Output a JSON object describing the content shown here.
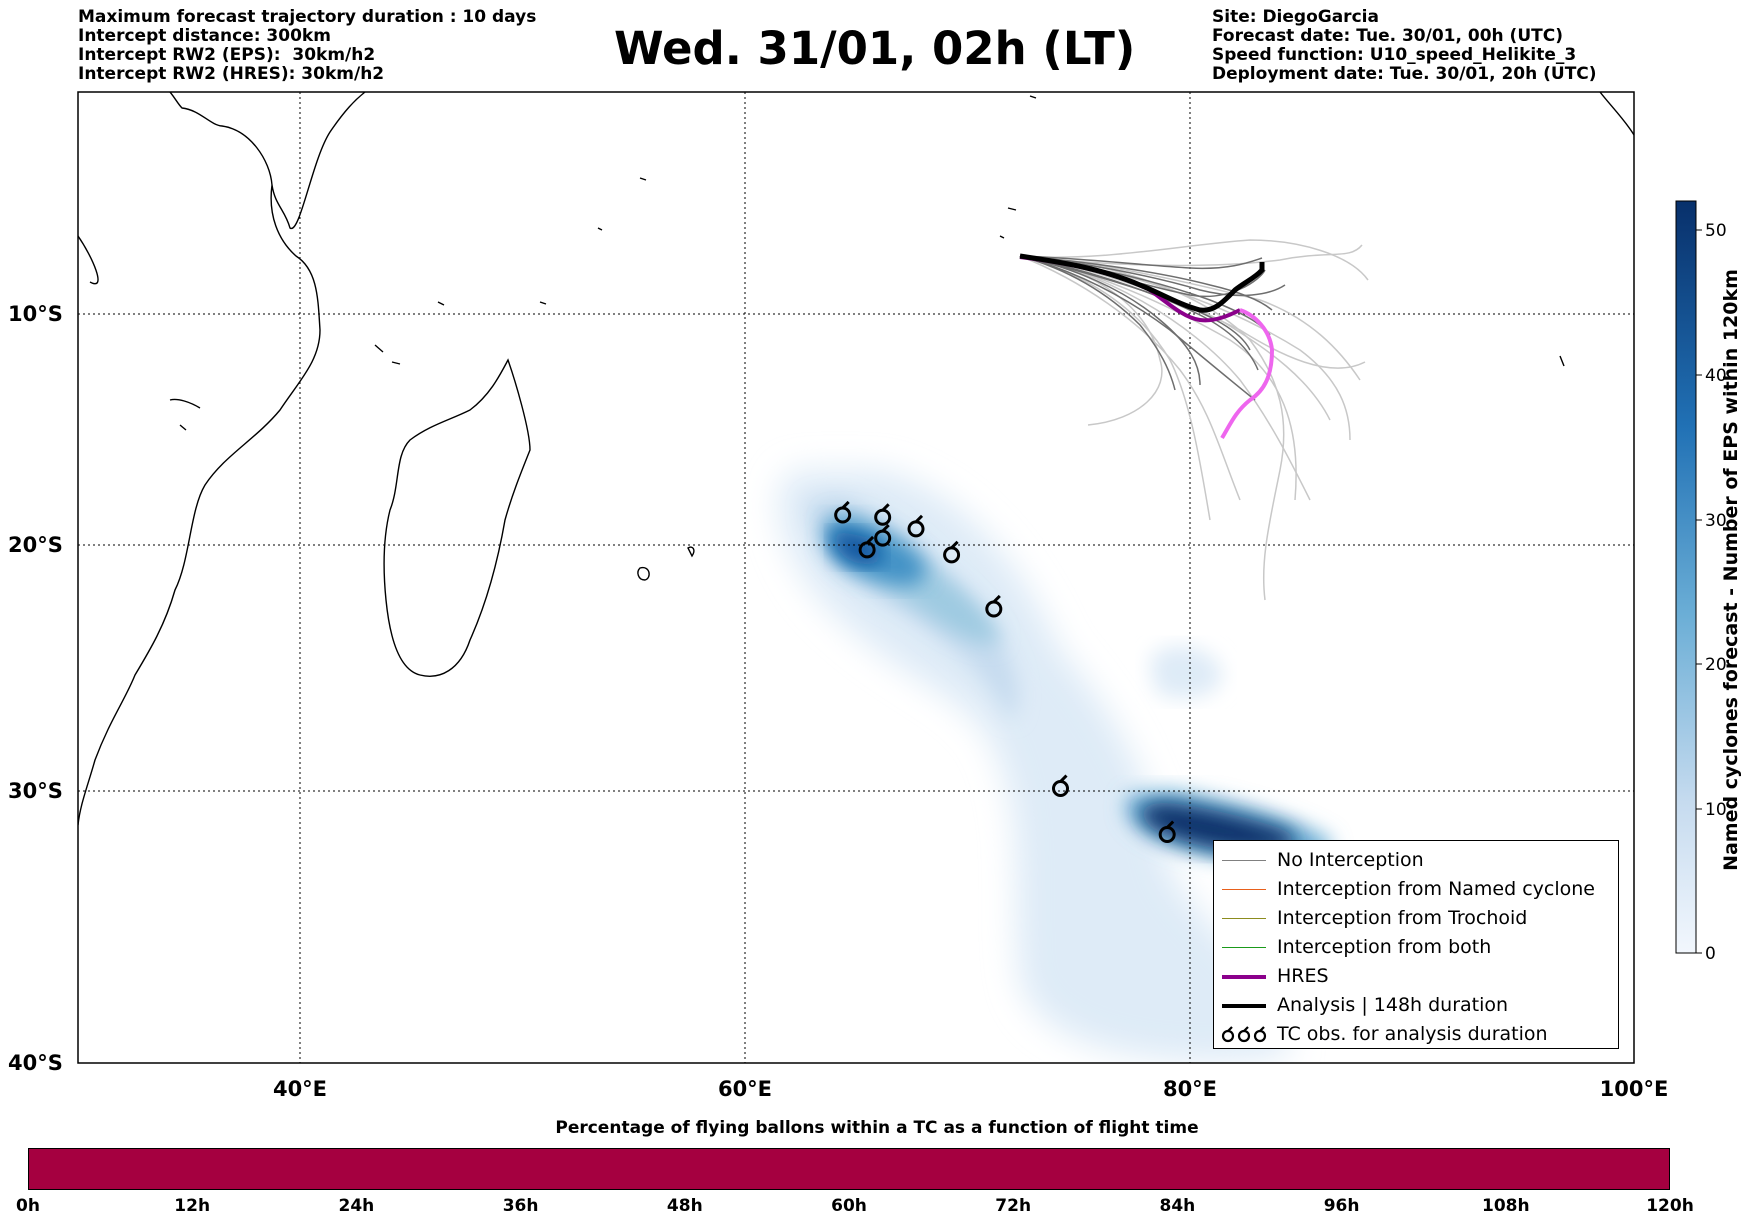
{
  "header_left": {
    "line1": "Maximum forecast trajectory duration : 10 days",
    "line2": "Intercept distance: 300km",
    "line3": "Intercept RW2 (EPS):  30km/h2",
    "line4": "Intercept RW2 (HRES): 30km/h2"
  },
  "title": "Wed. 31/01, 02h (LT)",
  "header_right": {
    "line1": "Site: DiegoGarcia",
    "line2": "Forecast date: Tue. 30/01, 00h (UTC)",
    "line3": "Speed function: U10_speed_Helikite_3",
    "line4": "Deployment date: Tue. 30/01, 20h (UTC)"
  },
  "map": {
    "lon_range": [
      30,
      100
    ],
    "lat_range": [
      -40,
      -1
    ],
    "lat_ticks": [
      "10°S",
      "20°S",
      "30°S",
      "40°S"
    ],
    "lon_ticks": [
      "40°E",
      "60°E",
      "80°E",
      "100°E"
    ],
    "gridlines": true
  },
  "legend": {
    "items": [
      {
        "label": "No Interception",
        "color": "#808080"
      },
      {
        "label": "Interception from Named cyclone",
        "color": "#e8601c"
      },
      {
        "label": "Interception from Trochoid",
        "color": "#8c8c1e"
      },
      {
        "label": "Interception from both",
        "color": "#1a9a1a"
      },
      {
        "label": "HRES",
        "color": "#8b008b"
      },
      {
        "label": "Analysis | 148h duration",
        "color": "#000000"
      },
      {
        "label": "TC obs. for analysis duration",
        "color": "#000000",
        "icon": "cyclone-symbol-icon",
        "glyph": "ℭℭℭ"
      }
    ]
  },
  "colorbar_vertical": {
    "label": "Named cyclones forecast - Number of EPS within 120km",
    "ticks": [
      "0",
      "10",
      "20",
      "30",
      "40",
      "50"
    ],
    "colors": [
      "#f2f7fd",
      "#084a91"
    ]
  },
  "colorbar_bottom": {
    "title": "Percentage of flying ballons within a TC as a function of flight time",
    "ticks": [
      "0h",
      "12h",
      "24h",
      "36h",
      "48h",
      "60h",
      "72h",
      "84h",
      "96h",
      "108h",
      "120h"
    ],
    "fill_color": "#a50040"
  },
  "tc_observations": [
    {
      "lon": 64.4,
      "lat": -18.7
    },
    {
      "lon": 66.2,
      "lat": -18.8
    },
    {
      "lon": 65.5,
      "lat": -20.2
    },
    {
      "lon": 66.2,
      "lat": -19.7
    },
    {
      "lon": 67.7,
      "lat": -19.3
    },
    {
      "lon": 69.3,
      "lat": -20.4
    },
    {
      "lon": 71.2,
      "lat": -22.6
    },
    {
      "lon": 74.2,
      "lat": -29.9
    },
    {
      "lon": 79.0,
      "lat": -31.6
    }
  ]
}
